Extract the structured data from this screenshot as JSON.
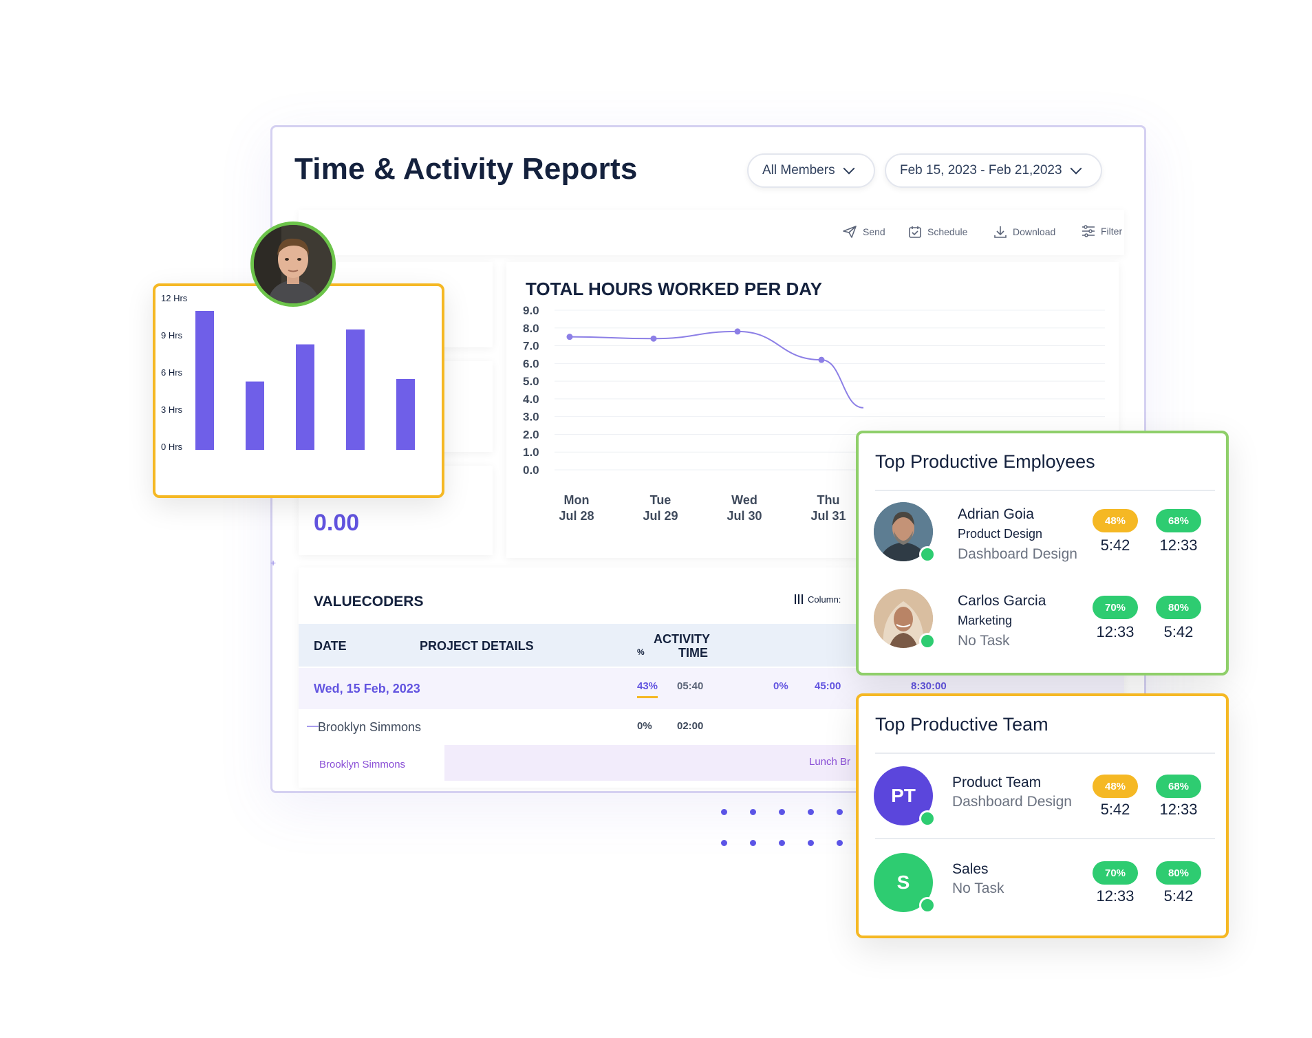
{
  "report": {
    "title": "Time & Activity Reports",
    "members_filter": "All Members",
    "date_range": "Feb 15, 2023 - Feb 21,2023",
    "toolbar": {
      "send": "Send",
      "schedule": "Schedule",
      "download": "Download",
      "filter": "Filter"
    },
    "summary_value": "0.00"
  },
  "chart_data": [
    {
      "type": "line",
      "title": "TOTAL HOURS WORKED PER DAY",
      "y_ticks": [
        "9.0",
        "8.0",
        "7.0",
        "6.0",
        "5.0",
        "4.0",
        "3.0",
        "2.0",
        "1.0",
        "0.0"
      ],
      "ylim": [
        0,
        9
      ],
      "x_labels": [
        {
          "day": "Mon",
          "date": "Jul 28"
        },
        {
          "day": "Tue",
          "date": "Jul 29"
        },
        {
          "day": "Wed",
          "date": "Jul 30"
        },
        {
          "day": "Thu",
          "date": "Jul 31"
        }
      ],
      "x": [
        0,
        1,
        2,
        3,
        3.5
      ],
      "y": [
        7.5,
        7.4,
        7.8,
        6.2,
        3.5
      ],
      "color": "#8c7fe6"
    },
    {
      "type": "bar",
      "y_ticks": [
        "12 Hrs",
        "9 Hrs",
        "6 Hrs",
        "3 Hrs",
        "0 Hrs"
      ],
      "ylim": [
        0,
        12
      ],
      "values": [
        11,
        5.3,
        8.3,
        9.5,
        5.5
      ],
      "color": "#6f5fe8"
    }
  ],
  "table": {
    "title": "VALUECODERS",
    "columns_button": "Column:",
    "headers": {
      "date": "DATE",
      "project": "PROJECT DETAILS",
      "activity": "ACTIVITY",
      "percent": "%",
      "time": "TIME"
    },
    "row_date": {
      "date": "Wed, 15 Feb, 2023",
      "percent": "43%",
      "time": "05:40",
      "percent2": "0%",
      "time2": "45:00",
      "total": "8:30:00"
    },
    "row_member": {
      "name": "Brooklyn Simmons",
      "percent": "0%",
      "time": "02:00"
    },
    "row_detail": {
      "name": "Brooklyn Simmons",
      "note": "Lunch Br"
    }
  },
  "employees": {
    "title": "Top Productive Employees",
    "items": [
      {
        "name": "Adrian Goia",
        "department": "Product Design",
        "task": "Dashboard Design",
        "badge1": "48%",
        "badge1_color": "#f5b824",
        "value1": "5:42",
        "badge2": "68%",
        "badge2_color": "#2ecc71",
        "value2": "12:33"
      },
      {
        "name": "Carlos Garcia",
        "department": "Marketing",
        "task": "No Task",
        "badge1": "70%",
        "badge1_color": "#2ecc71",
        "value1": "12:33",
        "badge2": "80%",
        "badge2_color": "#2ecc71",
        "value2": "5:42"
      }
    ]
  },
  "teams": {
    "title": "Top Productive Team",
    "items": [
      {
        "initials": "PT",
        "avatar_color": "#5b46dc",
        "name": "Product Team",
        "task": "Dashboard Design",
        "badge1": "48%",
        "badge1_color": "#f5b824",
        "value1": "5:42",
        "badge2": "68%",
        "badge2_color": "#2ecc71",
        "value2": "12:33"
      },
      {
        "initials": "S",
        "avatar_color": "#2ecc71",
        "name": "Sales",
        "task": "No Task",
        "badge1": "70%",
        "badge1_color": "#2ecc71",
        "value1": "12:33",
        "badge2": "80%",
        "badge2_color": "#2ecc71",
        "value2": "5:42"
      }
    ]
  }
}
